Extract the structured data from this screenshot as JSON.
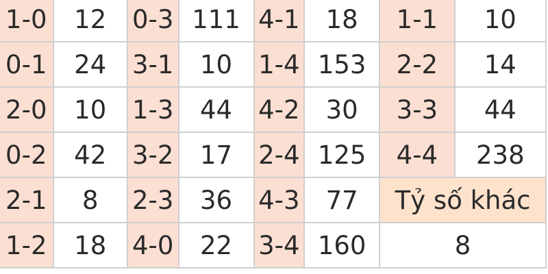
{
  "colors": {
    "score_cell": "#fbdfd2",
    "value_cell": "#ffffff",
    "other_label_cell": "#fde2cc",
    "border": "#cfcfcf"
  },
  "rows": [
    [
      {
        "score": "1-0",
        "odds": "12"
      },
      {
        "score": "0-3",
        "odds": "111"
      },
      {
        "score": "4-1",
        "odds": "18"
      },
      {
        "score": "1-1",
        "odds": "10"
      }
    ],
    [
      {
        "score": "0-1",
        "odds": "24"
      },
      {
        "score": "3-1",
        "odds": "10"
      },
      {
        "score": "1-4",
        "odds": "153"
      },
      {
        "score": "2-2",
        "odds": "14"
      }
    ],
    [
      {
        "score": "2-0",
        "odds": "10"
      },
      {
        "score": "1-3",
        "odds": "44"
      },
      {
        "score": "4-2",
        "odds": "30"
      },
      {
        "score": "3-3",
        "odds": "44"
      }
    ],
    [
      {
        "score": "0-2",
        "odds": "42"
      },
      {
        "score": "3-2",
        "odds": "17"
      },
      {
        "score": "2-4",
        "odds": "125"
      },
      {
        "score": "4-4",
        "odds": "238"
      }
    ],
    [
      {
        "score": "2-1",
        "odds": "8"
      },
      {
        "score": "2-3",
        "odds": "36"
      },
      {
        "score": "4-3",
        "odds": "77"
      }
    ],
    [
      {
        "score": "1-2",
        "odds": "18"
      },
      {
        "score": "4-0",
        "odds": "22"
      },
      {
        "score": "3-4",
        "odds": "160"
      }
    ]
  ],
  "other": {
    "label": "Tỷ số khác",
    "odds": "8"
  }
}
